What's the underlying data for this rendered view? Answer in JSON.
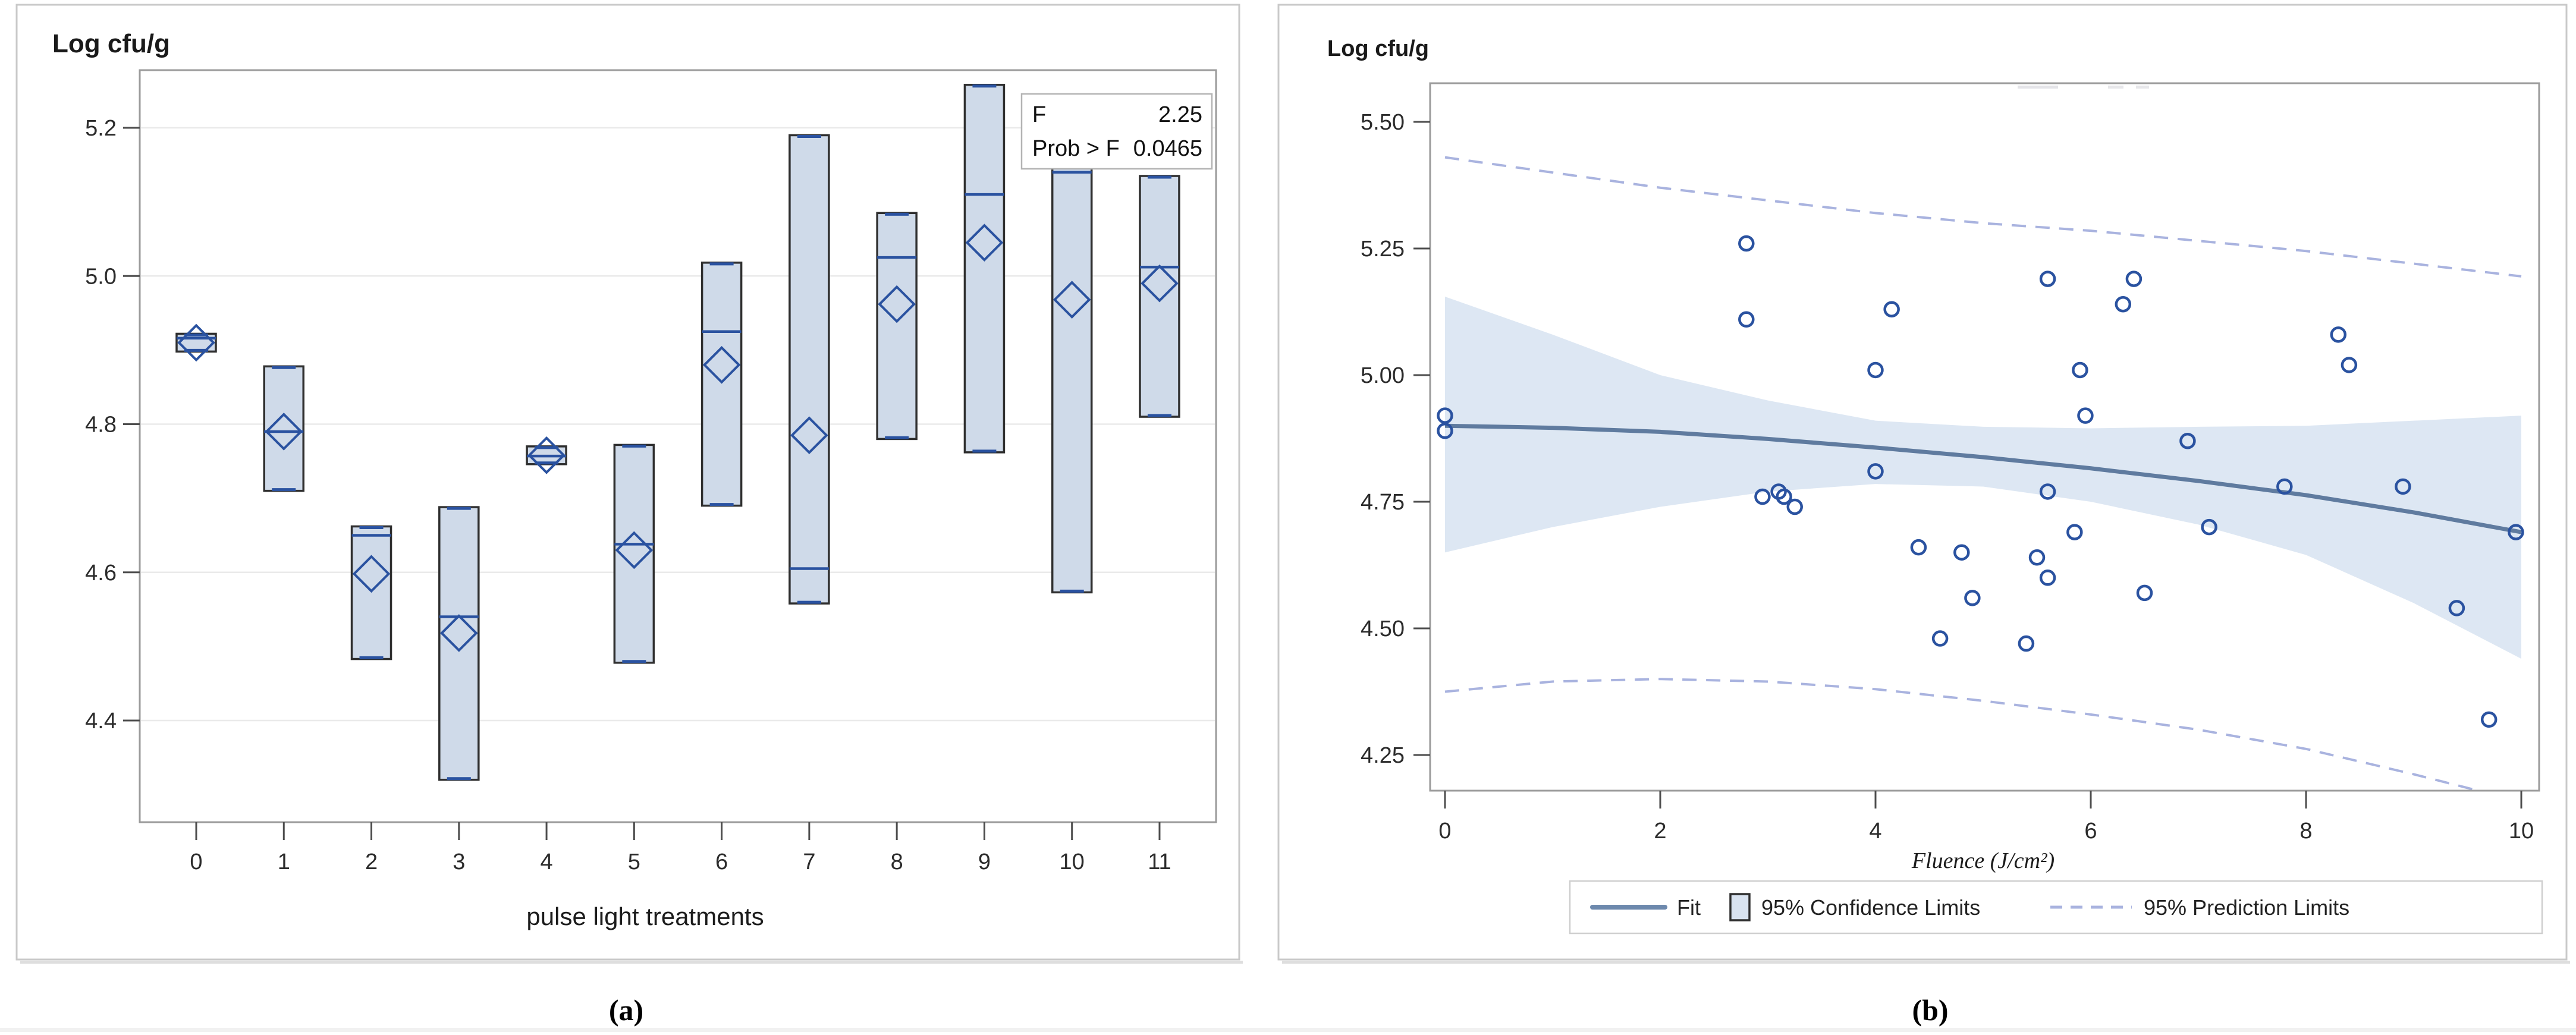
{
  "colors": {
    "accent_blue": "#2a52a0",
    "box_fill": "#cfdae9",
    "box_border": "#2f2f2f",
    "band_fill": "#dde7f3",
    "fit_line": "#5f7b9f",
    "dashed_limit": "#a9b3df",
    "gridline": "#eaeaea",
    "frame": "#9b9b9b",
    "tick": "#4d4d4d",
    "panel_border": "#c9c9c9"
  },
  "chart_data": [
    {
      "type": "box",
      "panel": "a",
      "caption": "(a)",
      "title": "Log cfu/g",
      "xlabel": "pulse light treatments",
      "categories": [
        "0",
        "1",
        "2",
        "3",
        "4",
        "5",
        "6",
        "7",
        "8",
        "9",
        "10",
        "11"
      ],
      "yticks": [
        5.2,
        5.0,
        4.8,
        4.6,
        4.4
      ],
      "ytick_labels": [
        "5.2",
        "5.0",
        "4.8",
        "4.6",
        "4.4"
      ],
      "ylim": [
        4.26,
        5.28
      ],
      "grid": true,
      "legend_position": "none",
      "annotation_rows": [
        [
          "F",
          "2.25"
        ],
        [
          "Prob > F",
          "0.0465"
        ]
      ],
      "boxes": [
        {
          "category": "0",
          "q1": 4.898,
          "median": 4.916,
          "q3": 4.922,
          "mean": 4.91
        },
        {
          "category": "1",
          "q1": 4.71,
          "median": 4.79,
          "q3": 4.878,
          "mean": 4.79
        },
        {
          "category": "2",
          "q1": 4.483,
          "median": 4.65,
          "q3": 4.662,
          "mean": 4.598
        },
        {
          "category": "3",
          "q1": 4.32,
          "median": 4.54,
          "q3": 4.688,
          "mean": 4.518
        },
        {
          "category": "4",
          "q1": 4.746,
          "median": 4.757,
          "q3": 4.77,
          "mean": 4.758
        },
        {
          "category": "5",
          "q1": 4.478,
          "median": 4.638,
          "q3": 4.772,
          "mean": 4.63
        },
        {
          "category": "6",
          "q1": 4.69,
          "median": 4.925,
          "q3": 5.018,
          "mean": 4.88
        },
        {
          "category": "7",
          "q1": 4.558,
          "median": 4.605,
          "q3": 5.19,
          "mean": 4.785
        },
        {
          "category": "8",
          "q1": 4.78,
          "median": 5.025,
          "q3": 5.085,
          "mean": 4.962
        },
        {
          "category": "9",
          "q1": 4.762,
          "median": 5.11,
          "q3": 5.258,
          "mean": 5.045
        },
        {
          "category": "10",
          "q1": 4.573,
          "median": 5.14,
          "q3": 5.23,
          "mean": 4.968
        },
        {
          "category": "11",
          "q1": 4.81,
          "median": 5.012,
          "q3": 5.135,
          "mean": 4.99
        }
      ]
    },
    {
      "type": "scatter",
      "panel": "b",
      "caption": "(b)",
      "title": "Log cfu/g",
      "xlabel": "Fluence (J/cm²)",
      "xticks": [
        0,
        2,
        4,
        6,
        8,
        10
      ],
      "yticks": [
        5.5,
        5.25,
        5.0,
        4.75,
        4.5,
        4.25
      ],
      "ytick_labels": [
        "5.50",
        "5.25",
        "5.00",
        "4.75",
        "4.50",
        "4.25"
      ],
      "xlim": [
        -0.15,
        10.3
      ],
      "ylim": [
        4.17,
        5.55
      ],
      "grid": false,
      "legend_position": "bottom",
      "legend": [
        {
          "label": "Fit",
          "marker": "line"
        },
        {
          "label": "95% Confidence Limits",
          "marker": "square"
        },
        {
          "label": "95% Prediction Limits",
          "marker": "dashed"
        }
      ],
      "points": [
        [
          0,
          4.92
        ],
        [
          0,
          4.89
        ],
        [
          2.8,
          5.26
        ],
        [
          2.8,
          5.11
        ],
        [
          2.95,
          4.76
        ],
        [
          3.1,
          4.77
        ],
        [
          3.15,
          4.76
        ],
        [
          3.25,
          4.74
        ],
        [
          4.0,
          5.01
        ],
        [
          4.0,
          4.81
        ],
        [
          4.15,
          5.13
        ],
        [
          4.4,
          4.66
        ],
        [
          4.6,
          4.48
        ],
        [
          4.8,
          4.65
        ],
        [
          4.9,
          4.56
        ],
        [
          5.4,
          4.47
        ],
        [
          5.5,
          4.64
        ],
        [
          5.6,
          5.19
        ],
        [
          5.6,
          4.77
        ],
        [
          5.6,
          4.6
        ],
        [
          5.85,
          4.69
        ],
        [
          5.9,
          5.01
        ],
        [
          5.95,
          4.92
        ],
        [
          6.3,
          5.14
        ],
        [
          6.4,
          5.19
        ],
        [
          6.5,
          4.57
        ],
        [
          6.9,
          4.87
        ],
        [
          7.1,
          4.7
        ],
        [
          7.8,
          4.78
        ],
        [
          8.3,
          5.08
        ],
        [
          8.4,
          5.02
        ],
        [
          8.9,
          4.78
        ],
        [
          9.4,
          4.54
        ],
        [
          9.7,
          4.32
        ],
        [
          9.95,
          4.69
        ]
      ],
      "fit_line": [
        [
          0,
          4.9
        ],
        [
          1,
          4.896
        ],
        [
          2,
          4.888
        ],
        [
          3,
          4.874
        ],
        [
          4,
          4.857
        ],
        [
          5,
          4.838
        ],
        [
          6,
          4.816
        ],
        [
          7,
          4.791
        ],
        [
          8,
          4.763
        ],
        [
          9,
          4.729
        ],
        [
          10,
          4.69
        ]
      ],
      "confidence_band": {
        "x": [
          0,
          1,
          2,
          3,
          4,
          5,
          6,
          7,
          8,
          9,
          10
        ],
        "upper": [
          5.155,
          5.08,
          5.0,
          4.95,
          4.91,
          4.898,
          4.895,
          4.898,
          4.9,
          4.91,
          4.92
        ],
        "lower": [
          4.65,
          4.7,
          4.74,
          4.77,
          4.785,
          4.78,
          4.75,
          4.705,
          4.645,
          4.55,
          4.44
        ]
      },
      "prediction_limits": {
        "x": [
          0,
          1,
          2,
          3,
          4,
          5,
          6,
          7,
          8,
          9,
          10
        ],
        "upper": [
          5.43,
          5.4,
          5.37,
          5.345,
          5.32,
          5.3,
          5.285,
          5.265,
          5.245,
          5.22,
          5.195
        ],
        "lower": [
          4.375,
          4.395,
          4.4,
          4.395,
          4.38,
          4.357,
          4.33,
          4.3,
          4.262,
          4.212,
          4.158
        ]
      }
    }
  ]
}
